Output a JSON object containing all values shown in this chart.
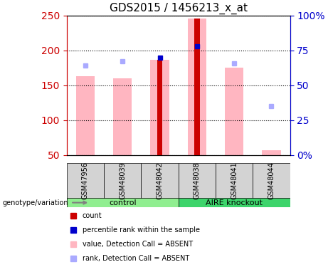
{
  "title": "GDS2015 / 1456213_x_at",
  "samples": [
    "GSM47956",
    "GSM48039",
    "GSM48042",
    "GSM48038",
    "GSM48041",
    "GSM48044"
  ],
  "groups": [
    {
      "name": "control",
      "samples": [
        "GSM47956",
        "GSM48039",
        "GSM48042"
      ],
      "color": "#90EE90"
    },
    {
      "name": "AIRE knockout",
      "samples": [
        "GSM48038",
        "GSM48041",
        "GSM48044"
      ],
      "color": "#00CC44"
    }
  ],
  "pink_bar_heights": [
    163,
    160,
    186,
    246,
    175,
    57
  ],
  "pink_bar_color": "#FFB6C1",
  "red_bar_heights": [
    0,
    0,
    186,
    246,
    0,
    0
  ],
  "red_bar_color": "#CC0000",
  "blue_dot_y": [
    178,
    184,
    189,
    206,
    181,
    120
  ],
  "blue_dot_color": "#0000CC",
  "lavender_dot_y": [
    178,
    184,
    189,
    206,
    181,
    120
  ],
  "lavender_dot_color": "#AAAAFF",
  "ylim_left": [
    50,
    250
  ],
  "ylim_right": [
    0,
    100
  ],
  "yticks_left": [
    50,
    100,
    150,
    200,
    250
  ],
  "yticks_right": [
    0,
    25,
    50,
    75,
    100
  ],
  "ytick_labels_right": [
    "0%",
    "25",
    "50",
    "75",
    "100%"
  ],
  "left_axis_color": "#CC0000",
  "right_axis_color": "#0000CC",
  "legend_items": [
    {
      "label": "count",
      "color": "#CC0000",
      "marker": "s"
    },
    {
      "label": "percentile rank within the sample",
      "color": "#0000CC",
      "marker": "s"
    },
    {
      "label": "value, Detection Call = ABSENT",
      "color": "#FFB6C1",
      "marker": "s"
    },
    {
      "label": "rank, Detection Call = ABSENT",
      "color": "#AAAAFF",
      "marker": "s"
    }
  ],
  "genotype_label": "genotype/variation"
}
